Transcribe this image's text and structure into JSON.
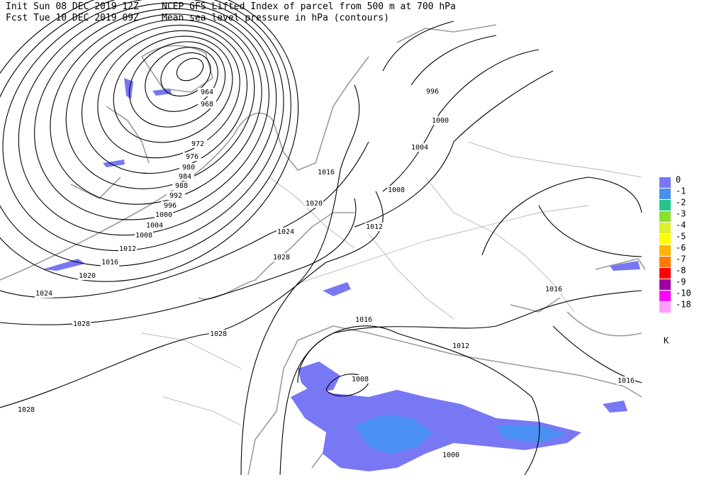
{
  "header": {
    "init": "Init  Sun 08 DEC 2019 12Z",
    "forecast": "Fcst Tue 10 DEC 2019 09Z",
    "title": "NCEP GFS Lifted Index of parcel from 500 m at 700 hPa",
    "subtitle": "Mean sea level pressure in hPa (contours)"
  },
  "contour_labels": [
    "964",
    "968",
    "972",
    "976",
    "980",
    "984",
    "988",
    "992",
    "996",
    "1000",
    "1004",
    "1008",
    "1012",
    "1016",
    "1020",
    "1024",
    "1028",
    "1028",
    "1028",
    "1028",
    "1024",
    "1020",
    "1016",
    "1012",
    "1008",
    "1004",
    "1000",
    "996",
    "1016",
    "1012",
    "1008",
    "1000",
    "1016",
    "1016"
  ],
  "legend": {
    "items": [
      {
        "label": "0",
        "color": "#7878f5"
      },
      {
        "label": "-1",
        "color": "#4a8ff2"
      },
      {
        "label": "-2",
        "color": "#22c78a"
      },
      {
        "label": "-3",
        "color": "#8ae02a"
      },
      {
        "label": "-4",
        "color": "#d9f02a"
      },
      {
        "label": "-5",
        "color": "#ffff00"
      },
      {
        "label": "-6",
        "color": "#ffb400"
      },
      {
        "label": "-7",
        "color": "#ff7800"
      },
      {
        "label": "-8",
        "color": "#ff0000"
      },
      {
        "label": "-9",
        "color": "#a000a0"
      },
      {
        "label": "-10",
        "color": "#ff00ff"
      },
      {
        "label": "-18",
        "color": "#ff9cff"
      }
    ],
    "unit": "K"
  }
}
